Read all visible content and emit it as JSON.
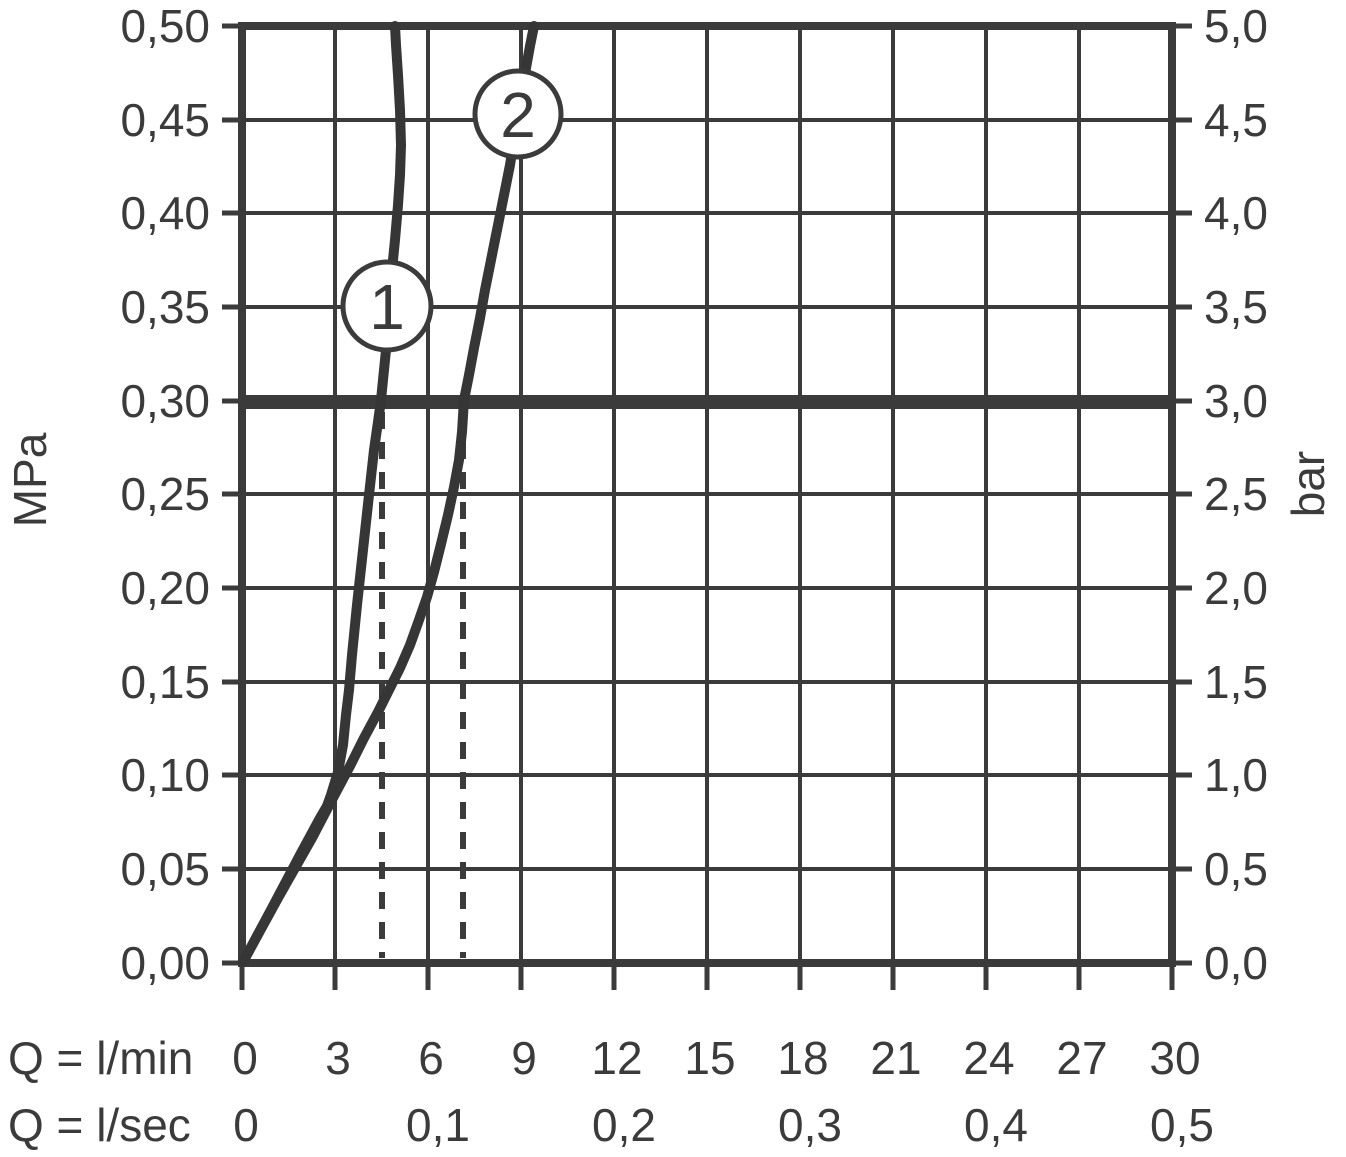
{
  "chart_data": {
    "type": "line",
    "description": "Pressure vs flow-rate diagram with two curves, thick reference line at 0,30 MPa (3,0 bar) and dashed guide lines at the curves' crossing flows",
    "grid": true,
    "xlabel_primary": "Q = l/min",
    "xlabel_secondary": "Q = l/sec",
    "ylabel_left": "MPa",
    "ylabel_right": "bar",
    "xlim_lmin": [
      0,
      30
    ],
    "ylim_mpa": [
      0,
      0.5
    ],
    "x_ticks_lmin": [
      0,
      3,
      6,
      9,
      12,
      15,
      18,
      21,
      24,
      27,
      30
    ],
    "x_ticks_lsec": [
      0,
      0.1,
      0.2,
      0.3,
      0.4,
      0.5
    ],
    "y_ticks_mpa": [
      0.0,
      0.05,
      0.1,
      0.15,
      0.2,
      0.25,
      0.3,
      0.35,
      0.4,
      0.45,
      0.5
    ],
    "y_ticks_bar": [
      0.0,
      0.5,
      1.0,
      1.5,
      2.0,
      2.5,
      3.0,
      3.5,
      4.0,
      4.5,
      5.0
    ],
    "reference_line": {
      "mpa": 0.3,
      "bar": 3.0,
      "style": "thick-horizontal"
    },
    "guide_lines": [
      {
        "style": "dashed-vertical",
        "q_lmin": 4.5,
        "from_mpa": 0.3,
        "series": "1"
      },
      {
        "style": "dashed-vertical",
        "q_lmin": 7.2,
        "from_mpa": 0.3,
        "series": "2"
      }
    ],
    "series": [
      {
        "name": "1",
        "label_at": {
          "q_lmin": 4.8,
          "mpa": 0.35
        },
        "points_q_lmin_vs_mpa": [
          [
            0,
            0
          ],
          [
            1.6,
            0.05
          ],
          [
            3.1,
            0.1
          ],
          [
            3.5,
            0.15
          ],
          [
            3.8,
            0.2
          ],
          [
            4.1,
            0.25
          ],
          [
            4.5,
            0.3
          ],
          [
            4.8,
            0.35
          ],
          [
            5.05,
            0.4
          ],
          [
            5.15,
            0.45
          ],
          [
            4.95,
            0.5
          ]
        ]
      },
      {
        "name": "2",
        "label_at": {
          "q_lmin": 8.9,
          "mpa": 0.45
        },
        "points_q_lmin_vs_mpa": [
          [
            0,
            0
          ],
          [
            1.65,
            0.05
          ],
          [
            3.35,
            0.1
          ],
          [
            4.7,
            0.15
          ],
          [
            5.7,
            0.2
          ],
          [
            6.4,
            0.25
          ],
          [
            7.2,
            0.3
          ],
          [
            7.9,
            0.35
          ],
          [
            8.45,
            0.4
          ],
          [
            8.95,
            0.45
          ],
          [
            9.4,
            0.5
          ]
        ]
      }
    ]
  },
  "axes": {
    "left": {
      "unit": "MPa",
      "tick_labels": [
        "0,50",
        "0,45",
        "0,40",
        "0,35",
        "0,30",
        "0,25",
        "0,20",
        "0,15",
        "0,10",
        "0,05",
        "0,00"
      ]
    },
    "right": {
      "unit": "bar",
      "tick_labels": [
        "5,0",
        "4,5",
        "4,0",
        "3,5",
        "3,0",
        "2,5",
        "2,0",
        "1,5",
        "1,0",
        "0,5",
        "0,0"
      ]
    },
    "bottom_primary": {
      "label": "Q = l/min",
      "tick_labels": [
        "0",
        "3",
        "6",
        "9",
        "12",
        "15",
        "18",
        "21",
        "24",
        "27",
        "30"
      ]
    },
    "bottom_secondary": {
      "label": "Q = l/sec",
      "tick_labels": [
        "0",
        "0,1",
        "0,2",
        "0,3",
        "0,4",
        "0,5"
      ]
    }
  },
  "curve_badges": [
    {
      "label": "1"
    },
    {
      "label": "2"
    }
  ],
  "colors": {
    "ink": "#3b3b3b",
    "background": "#ffffff"
  }
}
